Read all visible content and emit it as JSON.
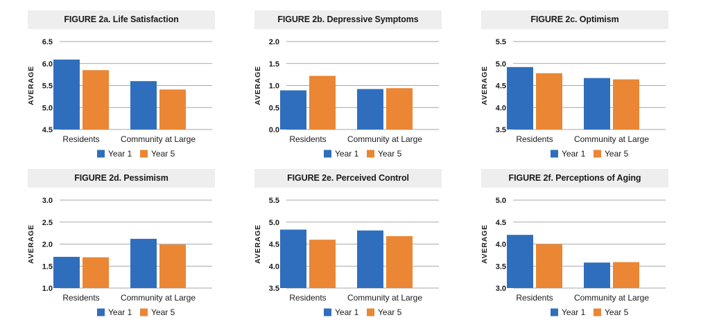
{
  "colors": {
    "year1": "#2f6ebd",
    "year5": "#ea8634"
  },
  "chart_data": [
    {
      "type": "bar",
      "title": "FIGURE 2a. Life Satisfaction",
      "ylabel": "AVERAGE",
      "categories": [
        "Residents",
        "Community at Large"
      ],
      "ylim": [
        4.5,
        6.5
      ],
      "yticks": [
        "6.5",
        "6.0",
        "5.5",
        "5.0",
        "4.5"
      ],
      "series": [
        {
          "name": "Year 1",
          "values": [
            6.09,
            5.6
          ]
        },
        {
          "name": "Year 5",
          "values": [
            5.85,
            5.41
          ]
        }
      ],
      "grid": true,
      "legend": "bottom"
    },
    {
      "type": "bar",
      "title": "FIGURE 2b. Depressive Symptoms",
      "ylabel": "AVERAGE",
      "categories": [
        "Residents",
        "Community at Large"
      ],
      "ylim": [
        0.0,
        2.0
      ],
      "yticks": [
        "2.0",
        "1.5",
        "1.0",
        "0.5",
        "0.0"
      ],
      "series": [
        {
          "name": "Year 1",
          "values": [
            0.89,
            0.92
          ]
        },
        {
          "name": "Year 5",
          "values": [
            1.22,
            0.94
          ]
        }
      ],
      "grid": true,
      "legend": "bottom"
    },
    {
      "type": "bar",
      "title": "FIGURE 2c. Optimism",
      "ylabel": "AVERAGE",
      "categories": [
        "Residents",
        "Community at Large"
      ],
      "ylim": [
        3.5,
        5.5
      ],
      "yticks": [
        "5.5",
        "5.0",
        "4.5",
        "4.0",
        "3.5"
      ],
      "series": [
        {
          "name": "Year 1",
          "values": [
            4.92,
            4.67
          ]
        },
        {
          "name": "Year 5",
          "values": [
            4.78,
            4.64
          ]
        }
      ],
      "grid": true,
      "legend": "bottom"
    },
    {
      "type": "bar",
      "title": "FIGURE 2d. Pessimism",
      "ylabel": "AVERAGE",
      "categories": [
        "Residents",
        "Community at Large"
      ],
      "ylim": [
        1.0,
        3.0
      ],
      "yticks": [
        "3.0",
        "2.5",
        "2.0",
        "1.5",
        "1.0"
      ],
      "series": [
        {
          "name": "Year 1",
          "values": [
            1.71,
            2.12
          ]
        },
        {
          "name": "Year 5",
          "values": [
            1.7,
            1.99
          ]
        }
      ],
      "grid": true,
      "legend": "bottom"
    },
    {
      "type": "bar",
      "title": "FIGURE 2e. Perceived Control",
      "ylabel": "AVERAGE",
      "categories": [
        "Residents",
        "Community at Large"
      ],
      "ylim": [
        3.5,
        5.5
      ],
      "yticks": [
        "5.5",
        "5.0",
        "4.5",
        "4.0",
        "3.5"
      ],
      "series": [
        {
          "name": "Year 1",
          "values": [
            4.83,
            4.81
          ]
        },
        {
          "name": "Year 5",
          "values": [
            4.6,
            4.68
          ]
        }
      ],
      "grid": true,
      "legend": "bottom"
    },
    {
      "type": "bar",
      "title": "FIGURE 2f. Perceptions of Aging",
      "ylabel": "AVERAGE",
      "categories": [
        "Residents",
        "Community at Large"
      ],
      "ylim": [
        3.0,
        5.0
      ],
      "yticks": [
        "5.0",
        "4.5",
        "4.0",
        "3.5",
        "3.0"
      ],
      "series": [
        {
          "name": "Year 1",
          "values": [
            4.21,
            3.58
          ]
        },
        {
          "name": "Year 5",
          "values": [
            4.0,
            3.59
          ]
        }
      ],
      "grid": true,
      "legend": "bottom"
    }
  ]
}
